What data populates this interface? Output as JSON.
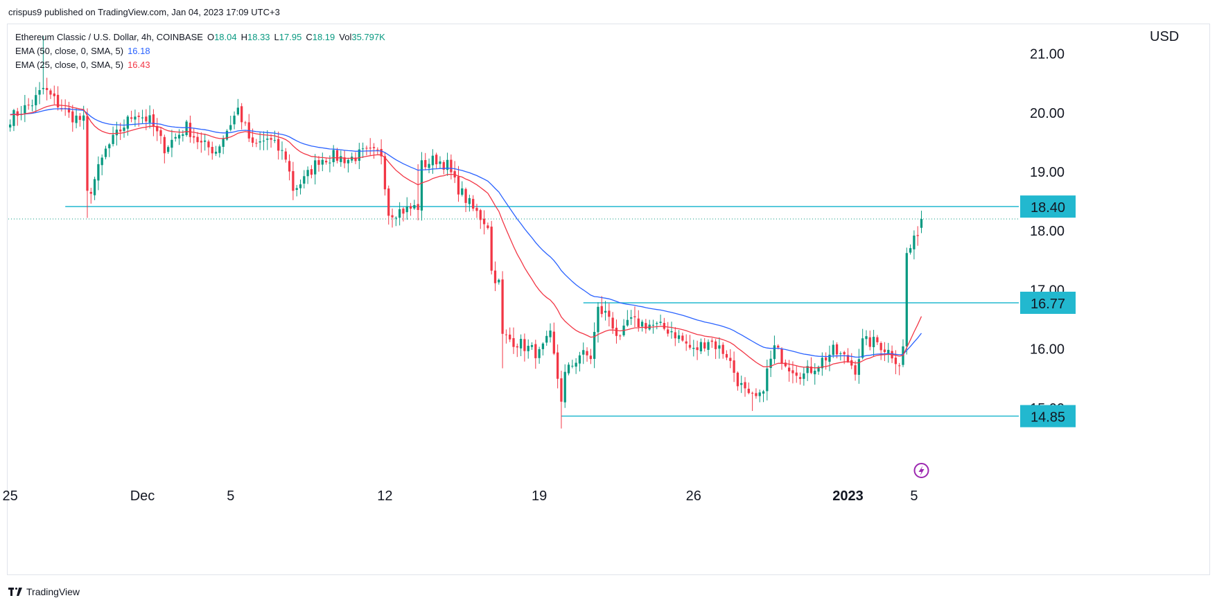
{
  "caption": "crispus9 published on TradingView.com, Jan 04, 2023 17:09 UTC+3",
  "footer_brand": "TradingView",
  "currency": "USD",
  "legend": {
    "title": "Ethereum Classic / U.S. Dollar, 4h, COINBASE",
    "open_label": "O",
    "open": "18.04",
    "high_label": "H",
    "high": "18.33",
    "low_label": "L",
    "low": "17.95",
    "close_label": "C",
    "close": "18.19",
    "vol_label": "Vol",
    "vol": "35.797K",
    "ema50_label": "EMA (50, close, 0, SMA, 5)",
    "ema50": "16.18",
    "ema25_label": "EMA (25, close, 0, SMA, 5)",
    "ema25": "16.43"
  },
  "colors": {
    "up": "#089981",
    "down": "#f23645",
    "ema50": "#2962ff",
    "ema25": "#f23645",
    "level": "#22b8cf"
  },
  "chart_data": {
    "type": "candlestick",
    "ylim": [
      13.8,
      21.5
    ],
    "y_ticks": [
      21.0,
      20.0,
      19.0,
      18.0,
      17.0,
      16.0,
      15.0
    ],
    "x_ticks": [
      {
        "label": "25",
        "bar": 0
      },
      {
        "label": "Dec",
        "bar": 36
      },
      {
        "label": "5",
        "bar": 60
      },
      {
        "label": "12",
        "bar": 102
      },
      {
        "label": "19",
        "bar": 144
      },
      {
        "label": "26",
        "bar": 186
      },
      {
        "label": "2023",
        "bar": 228,
        "bold": true
      },
      {
        "label": "5",
        "bar": 246
      }
    ],
    "x_bars_total": 275,
    "levels": [
      {
        "label": "18.40",
        "value": 18.4,
        "from_bar": 15
      },
      {
        "label": "16.77",
        "value": 16.77,
        "from_bar": 156
      },
      {
        "label": "14.85",
        "value": 14.85,
        "from_bar": 150
      }
    ],
    "last_price": 18.19,
    "anchors": [
      [
        0,
        19.9
      ],
      [
        6,
        20.15
      ],
      [
        9,
        20.4
      ],
      [
        12,
        20.2
      ],
      [
        16,
        19.95
      ],
      [
        20,
        19.85
      ],
      [
        21,
        18.6
      ],
      [
        22,
        18.7
      ],
      [
        26,
        19.35
      ],
      [
        30,
        19.7
      ],
      [
        34,
        20.0
      ],
      [
        38,
        19.85
      ],
      [
        42,
        19.4
      ],
      [
        48,
        19.75
      ],
      [
        52,
        19.45
      ],
      [
        56,
        19.35
      ],
      [
        62,
        20.05
      ],
      [
        66,
        19.4
      ],
      [
        70,
        19.55
      ],
      [
        75,
        19.25
      ],
      [
        77,
        18.7
      ],
      [
        80,
        18.85
      ],
      [
        84,
        19.2
      ],
      [
        88,
        19.25
      ],
      [
        92,
        19.2
      ],
      [
        96,
        19.3
      ],
      [
        101,
        19.3
      ],
      [
        103,
        18.3
      ],
      [
        108,
        18.35
      ],
      [
        111,
        18.4
      ],
      [
        112,
        19.1
      ],
      [
        116,
        19.2
      ],
      [
        119,
        19.1
      ],
      [
        121,
        18.8
      ],
      [
        126,
        18.35
      ],
      [
        130,
        18.1
      ],
      [
        131,
        17.3
      ],
      [
        133,
        17.1
      ],
      [
        134,
        16.2
      ],
      [
        138,
        16.1
      ],
      [
        144,
        15.9
      ],
      [
        147,
        16.2
      ],
      [
        150,
        15.15
      ],
      [
        151,
        15.55
      ],
      [
        155,
        15.9
      ],
      [
        158,
        15.85
      ],
      [
        160,
        16.65
      ],
      [
        163,
        16.55
      ],
      [
        166,
        16.1
      ],
      [
        168,
        16.45
      ],
      [
        174,
        16.4
      ],
      [
        180,
        16.3
      ],
      [
        186,
        15.95
      ],
      [
        190,
        16.15
      ],
      [
        195,
        15.9
      ],
      [
        198,
        15.45
      ],
      [
        201,
        15.15
      ],
      [
        204,
        15.15
      ],
      [
        206,
        15.6
      ],
      [
        208,
        16.0
      ],
      [
        212,
        15.7
      ],
      [
        216,
        15.55
      ],
      [
        220,
        15.75
      ],
      [
        224,
        15.95
      ],
      [
        228,
        15.8
      ],
      [
        230,
        15.65
      ],
      [
        232,
        16.1
      ],
      [
        236,
        16.1
      ],
      [
        240,
        15.9
      ],
      [
        242,
        15.75
      ],
      [
        243,
        16.0
      ],
      [
        244,
        17.6
      ],
      [
        246,
        17.8
      ],
      [
        248,
        18.19
      ]
    ],
    "ema_series": [
      {
        "name": "EMA (50, close, 0, SMA, 5)",
        "period": 50
      },
      {
        "name": "EMA (25, close, 0, SMA, 5)",
        "period": 25
      }
    ]
  }
}
